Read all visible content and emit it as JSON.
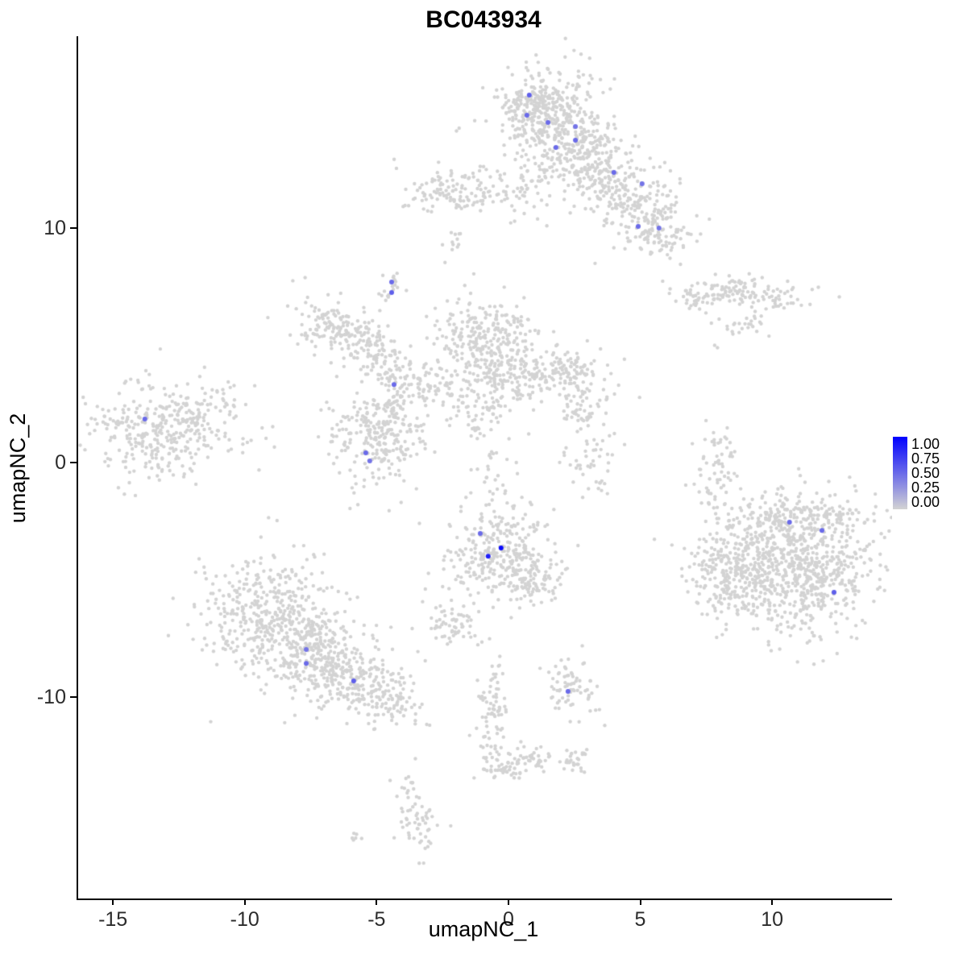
{
  "title": "BC043934",
  "axes": {
    "x": {
      "label": "umapNC_1",
      "ticks": [
        -15,
        -10,
        -5,
        0,
        5,
        10
      ],
      "min": -16.38,
      "max": 14.49
    },
    "y": {
      "label": "umapNC_2",
      "ticks": [
        10,
        0,
        -10
      ],
      "min": -18.59,
      "max": 18.18
    }
  },
  "legend": {
    "labels": [
      "1.00",
      "0.75",
      "0.50",
      "0.25",
      "0.00"
    ],
    "color_high": "#0000FF",
    "color_low": "#D3D3D3"
  },
  "style": {
    "point_radius": 2.2,
    "highlight_radius": 3.0,
    "axis_color": "#000000",
    "tick_label_color": "#2b2b2b",
    "panel_background": "#FFFFFF"
  },
  "chart_data": {
    "type": "scatter",
    "title": "BC043934",
    "xlabel": "umapNC_1",
    "ylabel": "umapNC_2",
    "xlim": [
      -16.38,
      14.49
    ],
    "ylim": [
      -18.59,
      18.18
    ],
    "grid": false,
    "legend_position": "right",
    "point_color_scale": {
      "low": "#D3D3D3",
      "high": "#0000FF",
      "domain": [
        0,
        1
      ]
    },
    "representation": "background_clusters are gaussian density summaries of the grey (zero-expression) cells; expressing_cells are the individually visible colored cells",
    "background_clusters": [
      {
        "x": 1.5,
        "y": 14.6,
        "sx": 1.05,
        "sy": 1.1,
        "n": 380,
        "rot": 0
      },
      {
        "x": 0.9,
        "y": 15.3,
        "sx": 0.5,
        "sy": 0.4,
        "n": 80,
        "rot": 0
      },
      {
        "x": 3.0,
        "y": 12.9,
        "sx": 0.95,
        "sy": 0.85,
        "n": 220,
        "rot": -20
      },
      {
        "x": 4.7,
        "y": 11.3,
        "sx": 1.0,
        "sy": 0.75,
        "n": 170,
        "rot": -35
      },
      {
        "x": 5.5,
        "y": 9.9,
        "sx": 0.75,
        "sy": 0.55,
        "n": 110,
        "rot": -20
      },
      {
        "x": 0.6,
        "y": 11.7,
        "sx": 0.5,
        "sy": 0.6,
        "n": 40,
        "rot": 0
      },
      {
        "x": -2.0,
        "y": 11.5,
        "sx": 1.0,
        "sy": 0.5,
        "n": 130,
        "rot": 0
      },
      {
        "x": -2.3,
        "y": 9.3,
        "sx": 0.25,
        "sy": 0.35,
        "n": 12,
        "rot": 0
      },
      {
        "x": -4.45,
        "y": 7.5,
        "sx": 0.28,
        "sy": 0.35,
        "n": 18,
        "rot": 0
      },
      {
        "x": -6.5,
        "y": 5.7,
        "sx": 0.85,
        "sy": 0.6,
        "n": 160,
        "rot": -15
      },
      {
        "x": -5.0,
        "y": 4.5,
        "sx": 0.55,
        "sy": 0.5,
        "n": 70,
        "rot": -30
      },
      {
        "x": -4.1,
        "y": 3.7,
        "sx": 0.55,
        "sy": 0.45,
        "n": 60,
        "rot": -30
      },
      {
        "x": -0.9,
        "y": 5.3,
        "sx": 0.95,
        "sy": 0.85,
        "n": 260,
        "rot": 0
      },
      {
        "x": 0.0,
        "y": 3.7,
        "sx": 0.7,
        "sy": 0.6,
        "n": 130,
        "rot": 0
      },
      {
        "x": 2.0,
        "y": 3.9,
        "sx": 0.8,
        "sy": 0.55,
        "n": 110,
        "rot": 0
      },
      {
        "x": -1.2,
        "y": 2.1,
        "sx": 0.65,
        "sy": 0.55,
        "n": 70,
        "rot": 0
      },
      {
        "x": -2.8,
        "y": 3.3,
        "sx": 0.6,
        "sy": 0.45,
        "n": 50,
        "rot": 0
      },
      {
        "x": -5.0,
        "y": 0.9,
        "sx": 0.95,
        "sy": 0.95,
        "n": 240,
        "rot": 0
      },
      {
        "x": -4.6,
        "y": 2.3,
        "sx": 0.3,
        "sy": 0.5,
        "n": 30,
        "rot": 0
      },
      {
        "x": -12.9,
        "y": 1.5,
        "sx": 1.35,
        "sy": 0.95,
        "n": 380,
        "rot": 10
      },
      {
        "x": 2.7,
        "y": 2.6,
        "sx": 0.55,
        "sy": 0.65,
        "n": 60,
        "rot": 0
      },
      {
        "x": 2.9,
        "y": 0.3,
        "sx": 0.5,
        "sy": 0.9,
        "n": 50,
        "rot": 0
      },
      {
        "x": 7.9,
        "y": -0.2,
        "sx": 0.4,
        "sy": 1.1,
        "n": 70,
        "rot": 0
      },
      {
        "x": 7.3,
        "y": 7.1,
        "sx": 0.7,
        "sy": 0.3,
        "n": 60,
        "rot": 0
      },
      {
        "x": 9.2,
        "y": 7.3,
        "sx": 1.0,
        "sy": 0.35,
        "n": 100,
        "rot": -8
      },
      {
        "x": 9.0,
        "y": 5.9,
        "sx": 0.55,
        "sy": 0.22,
        "n": 25,
        "rot": 0
      },
      {
        "x": 7.85,
        "y": 5.0,
        "sx": 0.1,
        "sy": 0.1,
        "n": 2,
        "rot": 0
      },
      {
        "x": -0.5,
        "y": -3.8,
        "sx": 1.05,
        "sy": 0.95,
        "n": 300,
        "rot": 0
      },
      {
        "x": -2.2,
        "y": -6.9,
        "sx": 0.55,
        "sy": 0.5,
        "n": 60,
        "rot": 0
      },
      {
        "x": 0.9,
        "y": -5.1,
        "sx": 0.55,
        "sy": 0.5,
        "n": 80,
        "rot": 35
      },
      {
        "x": -0.6,
        "y": -0.6,
        "sx": 0.5,
        "sy": 1.1,
        "n": 30,
        "rot": 0
      },
      {
        "x": -9.3,
        "y": -6.3,
        "sx": 1.25,
        "sy": 1.25,
        "n": 380,
        "rot": 0
      },
      {
        "x": -7.4,
        "y": -8.1,
        "sx": 1.25,
        "sy": 1.0,
        "n": 350,
        "rot": -30
      },
      {
        "x": -5.5,
        "y": -9.6,
        "sx": 0.9,
        "sy": 0.6,
        "n": 160,
        "rot": -25
      },
      {
        "x": -4.3,
        "y": -10.3,
        "sx": 0.45,
        "sy": 0.35,
        "n": 40,
        "rot": -20
      },
      {
        "x": 2.3,
        "y": -9.5,
        "sx": 0.5,
        "sy": 0.55,
        "n": 70,
        "rot": 0
      },
      {
        "x": 10.8,
        "y": -4.4,
        "sx": 1.6,
        "sy": 1.5,
        "n": 850,
        "rot": 0
      },
      {
        "x": 8.2,
        "y": -4.9,
        "sx": 0.6,
        "sy": 1.0,
        "n": 160,
        "rot": 0
      },
      {
        "x": 10.9,
        "y": -2.2,
        "sx": 1.3,
        "sy": 0.45,
        "n": 130,
        "rot": 0
      },
      {
        "x": -0.7,
        "y": -10.7,
        "sx": 0.3,
        "sy": 1.1,
        "n": 80,
        "rot": 0
      },
      {
        "x": 0.7,
        "y": -12.6,
        "sx": 0.5,
        "sy": 0.3,
        "n": 45,
        "rot": 0
      },
      {
        "x": -0.3,
        "y": -13.1,
        "sx": 0.45,
        "sy": 0.25,
        "n": 35,
        "rot": 0
      },
      {
        "x": 2.3,
        "y": -12.6,
        "sx": 0.4,
        "sy": 0.3,
        "n": 30,
        "rot": 0
      },
      {
        "x": -3.6,
        "y": -15.0,
        "sx": 0.4,
        "sy": 0.85,
        "n": 65,
        "rot": 10
      },
      {
        "x": -5.8,
        "y": -15.9,
        "sx": 0.18,
        "sy": 0.12,
        "n": 6,
        "rot": 0
      }
    ],
    "expressing_cells": [
      {
        "x": 0.73,
        "y": 15.67,
        "value": 0.55
      },
      {
        "x": 0.64,
        "y": 14.81,
        "value": 0.5
      },
      {
        "x": 1.44,
        "y": 14.5,
        "value": 0.5
      },
      {
        "x": 2.48,
        "y": 14.33,
        "value": 0.45
      },
      {
        "x": 1.74,
        "y": 13.44,
        "value": 0.5
      },
      {
        "x": 2.48,
        "y": 13.75,
        "value": 0.5
      },
      {
        "x": 3.94,
        "y": 12.37,
        "value": 0.5
      },
      {
        "x": 5.01,
        "y": 11.89,
        "value": 0.45
      },
      {
        "x": 4.86,
        "y": 10.07,
        "value": 0.5
      },
      {
        "x": 5.65,
        "y": 10.0,
        "value": 0.45
      },
      {
        "x": -4.49,
        "y": 7.7,
        "value": 0.5
      },
      {
        "x": -4.49,
        "y": 7.25,
        "value": 0.55
      },
      {
        "x": -4.4,
        "y": 3.33,
        "value": 0.5
      },
      {
        "x": -5.47,
        "y": 0.41,
        "value": 0.5
      },
      {
        "x": -5.32,
        "y": 0.07,
        "value": 0.45
      },
      {
        "x": -13.85,
        "y": 1.86,
        "value": 0.5
      },
      {
        "x": -1.13,
        "y": -3.02,
        "value": 0.5
      },
      {
        "x": -0.34,
        "y": -3.64,
        "value": 0.95
      },
      {
        "x": -0.83,
        "y": -3.99,
        "value": 0.85
      },
      {
        "x": -7.73,
        "y": -7.97,
        "value": 0.45
      },
      {
        "x": -7.73,
        "y": -8.56,
        "value": 0.5
      },
      {
        "x": -5.93,
        "y": -9.31,
        "value": 0.55
      },
      {
        "x": 2.2,
        "y": -9.76,
        "value": 0.5
      },
      {
        "x": 10.6,
        "y": -2.54,
        "value": 0.5
      },
      {
        "x": 11.83,
        "y": -2.89,
        "value": 0.5
      },
      {
        "x": 12.29,
        "y": -5.53,
        "value": 0.55
      }
    ]
  }
}
